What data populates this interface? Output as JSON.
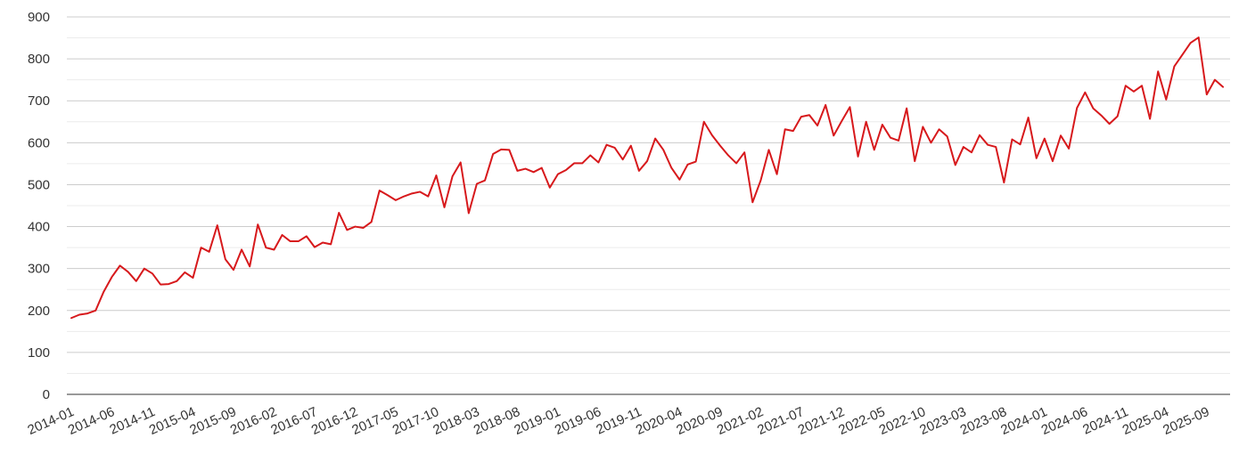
{
  "chart_data": {
    "type": "line",
    "title": "",
    "xlabel": "",
    "ylabel": "",
    "ylim": [
      0,
      900
    ],
    "y_ticks": [
      0,
      100,
      200,
      300,
      400,
      500,
      600,
      700,
      800,
      900
    ],
    "y_minor_gridlines": true,
    "grid": true,
    "legend": "none",
    "x_start": "2014-01",
    "x_tick_labels": [
      "2014-01",
      "2014-06",
      "2014-11",
      "2015-04",
      "2015-09",
      "2016-02",
      "2016-07",
      "2016-12",
      "2017-05",
      "2017-10",
      "2018-03",
      "2018-08",
      "2019-01",
      "2019-06",
      "2019-11",
      "2020-04",
      "2020-09",
      "2021-02",
      "2021-07",
      "2021-12",
      "2022-05",
      "2022-10",
      "2023-03",
      "2023-08",
      "2024-01",
      "2024-06",
      "2024-11",
      "2025-04",
      "2025-09"
    ],
    "colors": {
      "series": "#d7191c",
      "axis": "#333333",
      "grid": "#cccccc"
    },
    "series": [
      {
        "values": [
          182,
          190,
          193,
          200,
          245,
          280,
          307,
          292,
          270,
          300,
          288,
          262,
          263,
          270,
          291,
          278,
          350,
          340,
          403,
          322,
          297,
          345,
          305,
          405,
          350,
          345,
          380,
          365,
          365,
          377,
          351,
          362,
          358,
          433,
          392,
          400,
          397,
          411,
          486,
          475,
          463,
          472,
          479,
          483,
          472,
          522,
          446,
          520,
          553,
          432,
          502,
          510,
          573,
          584,
          583,
          533,
          538,
          530,
          540,
          493,
          525,
          535,
          551,
          551,
          570,
          553,
          595,
          588,
          560,
          593,
          533,
          556,
          610,
          583,
          540,
          512,
          548,
          555,
          650,
          618,
          593,
          570,
          551,
          577,
          458,
          510,
          583,
          525,
          632,
          628,
          662,
          666,
          641,
          690,
          617,
          652,
          685,
          567,
          650,
          583,
          643,
          612,
          605,
          682,
          556,
          638,
          600,
          632,
          615,
          547,
          590,
          577,
          618,
          595,
          590,
          505,
          608,
          596,
          660,
          563,
          610,
          556,
          617,
          586,
          683,
          720,
          682,
          665,
          645,
          663,
          736,
          722,
          736,
          657,
          770,
          703,
          782,
          810,
          838,
          851,
          715,
          750,
          733
        ]
      }
    ]
  }
}
